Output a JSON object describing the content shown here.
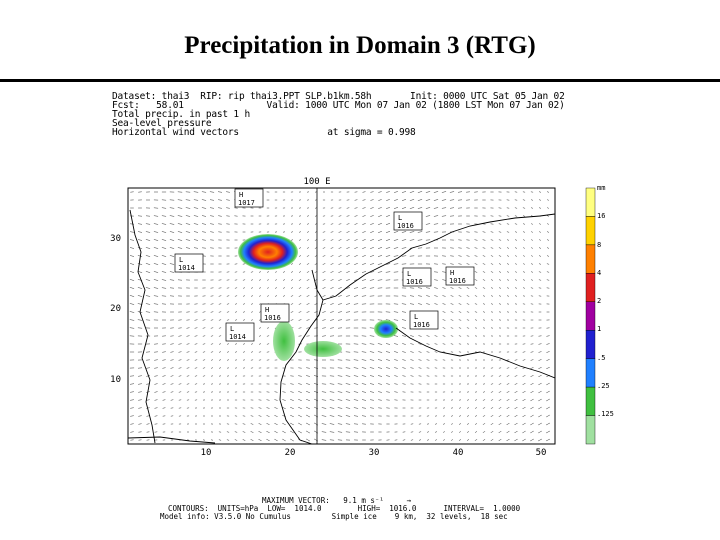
{
  "slide": {
    "title": "Precipitation in Domain 3 (RTG)"
  },
  "header": {
    "lines": [
      "Dataset: thai3  RIP: rip thai3.PPT SLP.b1km.58h       Init: 0000 UTC Sat 05 Jan 02",
      "Fcst:   58.01               Valid: 1000 UTC Mon 07 Jan 02 (1800 LST Mon 07 Jan 02)",
      "Total precip. in past 1 h",
      "Sea-level pressure",
      "Horizontal wind vectors                at sigma = 0.998"
    ]
  },
  "map": {
    "meridian_label": "100 E",
    "y_ticks": [
      "30",
      "20",
      "10"
    ],
    "x_ticks": [
      "10",
      "20",
      "30",
      "40",
      "50"
    ],
    "pressure_centers": [
      {
        "type": "H",
        "value": "1017"
      },
      {
        "type": "L",
        "value": "1016"
      },
      {
        "type": "L",
        "value": "1014"
      },
      {
        "type": "L",
        "value": "1016"
      },
      {
        "type": "H",
        "value": "1016"
      },
      {
        "type": "H",
        "value": "1016"
      },
      {
        "type": "L",
        "value": "1014"
      },
      {
        "type": "L",
        "value": "1016"
      }
    ]
  },
  "colorbar": {
    "unit": "mm",
    "labels": [
      "16",
      "8",
      "4",
      "2",
      "1",
      ".5",
      ".25",
      ".125"
    ],
    "colors": [
      "#ffff80",
      "#ffd200",
      "#ff8000",
      "#e02020",
      "#a000a0",
      "#2020d0",
      "#2080ff",
      "#40c040",
      "#a0e0a0"
    ]
  },
  "footer": {
    "line1": "MAXIMUM VECTOR:   9.1 m s⁻¹     →",
    "line2": "CONTOURS:  UNITS=hPa  LOW=  1014.0        HIGH=  1016.0      INTERVAL=  1.0000",
    "line3": "Model info: V3.5.0 No Cumulus         Simple ice    9 km,  32 levels,  18 sec"
  }
}
